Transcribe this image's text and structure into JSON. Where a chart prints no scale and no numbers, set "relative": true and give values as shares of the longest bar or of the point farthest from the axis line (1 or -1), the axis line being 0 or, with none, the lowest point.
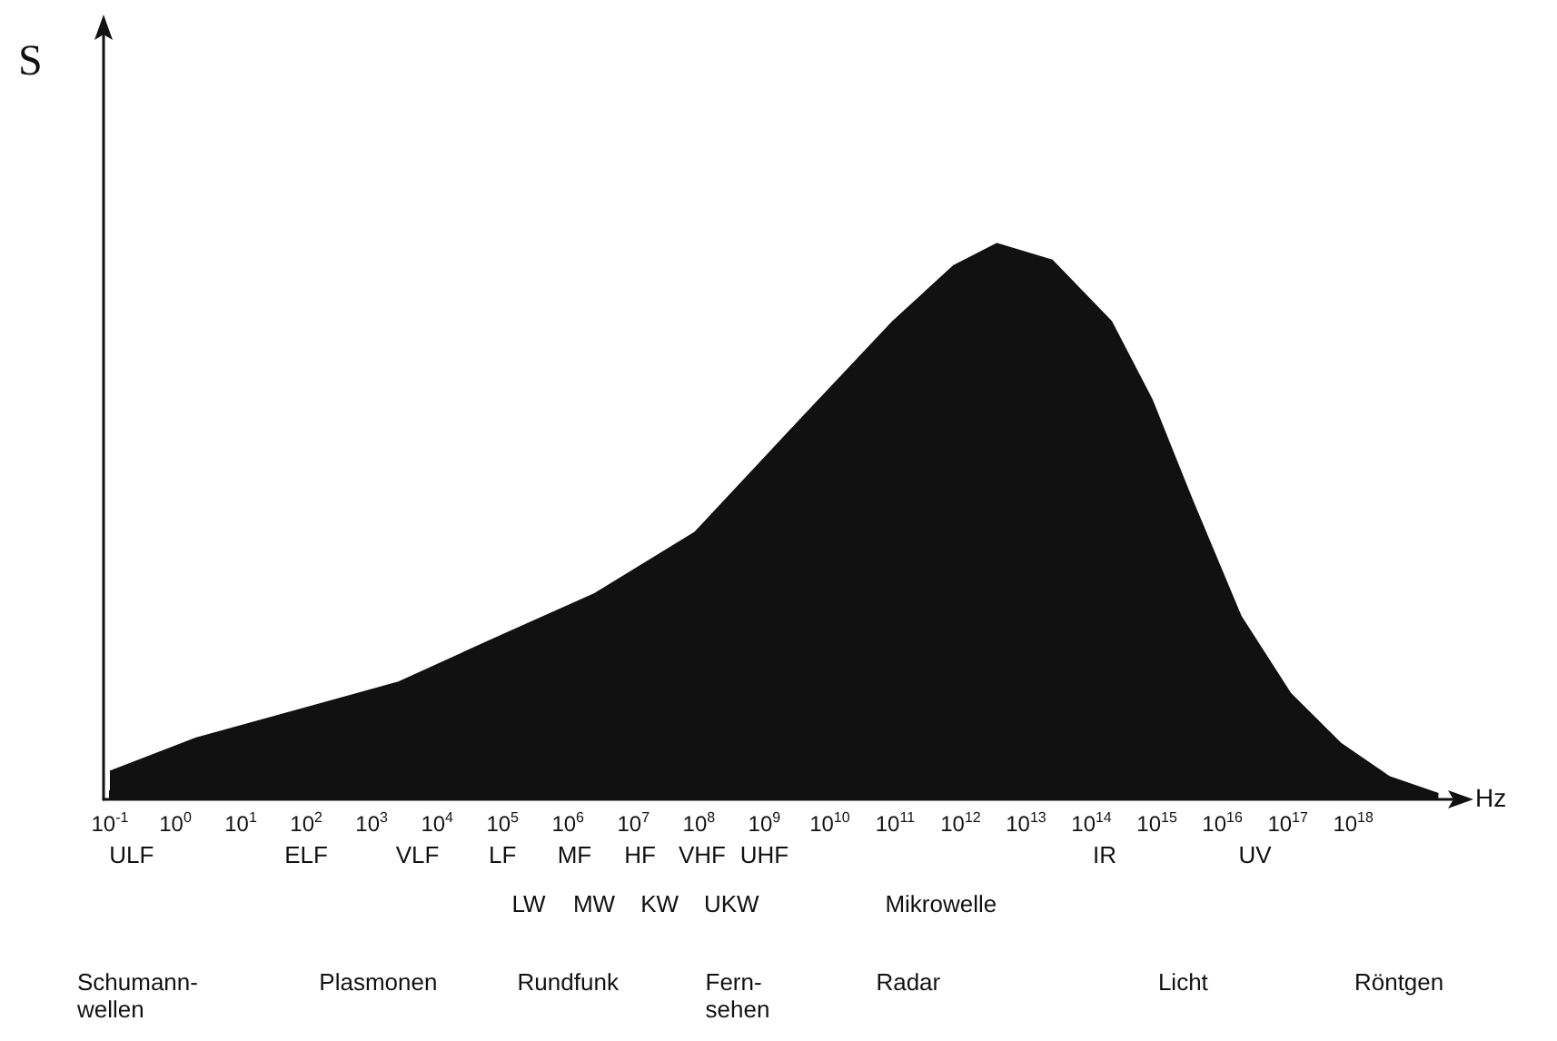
{
  "chart_data": {
    "type": "area",
    "relative": true,
    "xlabel": "Hz",
    "ylabel": "S",
    "log": "x",
    "color": "#111111",
    "grid": false,
    "marker": "none",
    "x": [
      0.1,
      2.1,
      72,
      2500,
      78000,
      2600000,
      87000000,
      2800000000,
      93000000000,
      780000000000,
      3600000000000,
      25000000000000,
      200000000000000,
      830000000000000,
      3400000000000000,
      19000000000000000,
      110000000000000000,
      650000000000000000,
      3600000000000000000,
      20000000000000000000
    ],
    "values": [
      0.05,
      0.11,
      0.16,
      0.21,
      0.29,
      0.37,
      0.48,
      0.67,
      0.86,
      0.96,
      1.0,
      0.97,
      0.86,
      0.72,
      0.54,
      0.33,
      0.19,
      0.1,
      0.04,
      0.01
    ],
    "xlim": [
      0.08,
      34000000000000000000
    ],
    "xticks": [
      {
        "value": 0.1,
        "label": "10$^{-1}$"
      },
      {
        "value": 1,
        "label": "10$^{0}$"
      },
      {
        "value": 10,
        "label": "10$^{1}$"
      },
      {
        "value": 100,
        "label": "10$^{2}$"
      },
      {
        "value": 1000,
        "label": "10$^{3}$"
      },
      {
        "value": 10000,
        "label": "10$^{4}$"
      },
      {
        "value": 100000,
        "label": "10$^{5}$"
      },
      {
        "value": 1000000,
        "label": "10$^{6}$"
      },
      {
        "value": 10000000,
        "label": "10$^{7}$"
      },
      {
        "value": 100000000,
        "label": "10$^{8}$"
      },
      {
        "value": 1000000000,
        "label": "10$^{9}$"
      },
      {
        "value": 10000000000.0,
        "label": "10$^{10}$"
      },
      {
        "value": 100000000000.0,
        "label": "10$^{11}$"
      },
      {
        "value": 1000000000000.0,
        "label": "10$^{12}$"
      },
      {
        "value": 10000000000000.0,
        "label": "10$^{13}$"
      },
      {
        "value": 100000000000000.0,
        "label": "10$^{14}$"
      },
      {
        "value": 1000000000000000.0,
        "label": "10$^{15}$"
      },
      {
        "value": 1e+16,
        "label": "10$^{16}$"
      },
      {
        "value": 1e+17,
        "label": "10$^{17}$"
      },
      {
        "value": 1e+18,
        "label": "10$^{18}$"
      }
    ],
    "annotations": [
      "ULF",
      "ELF",
      "VLF",
      "LF",
      "MF",
      "HF",
      "VHF",
      "UHF",
      "IR",
      "UV",
      "LW",
      "MW",
      "KW",
      "UKW",
      "Mikrowelle",
      "Schumann-\nwellen",
      "Plasmonen",
      "Rundfunk",
      "Fern-\nsehen",
      "Radar",
      "Licht",
      "Röntgen"
    ]
  }
}
